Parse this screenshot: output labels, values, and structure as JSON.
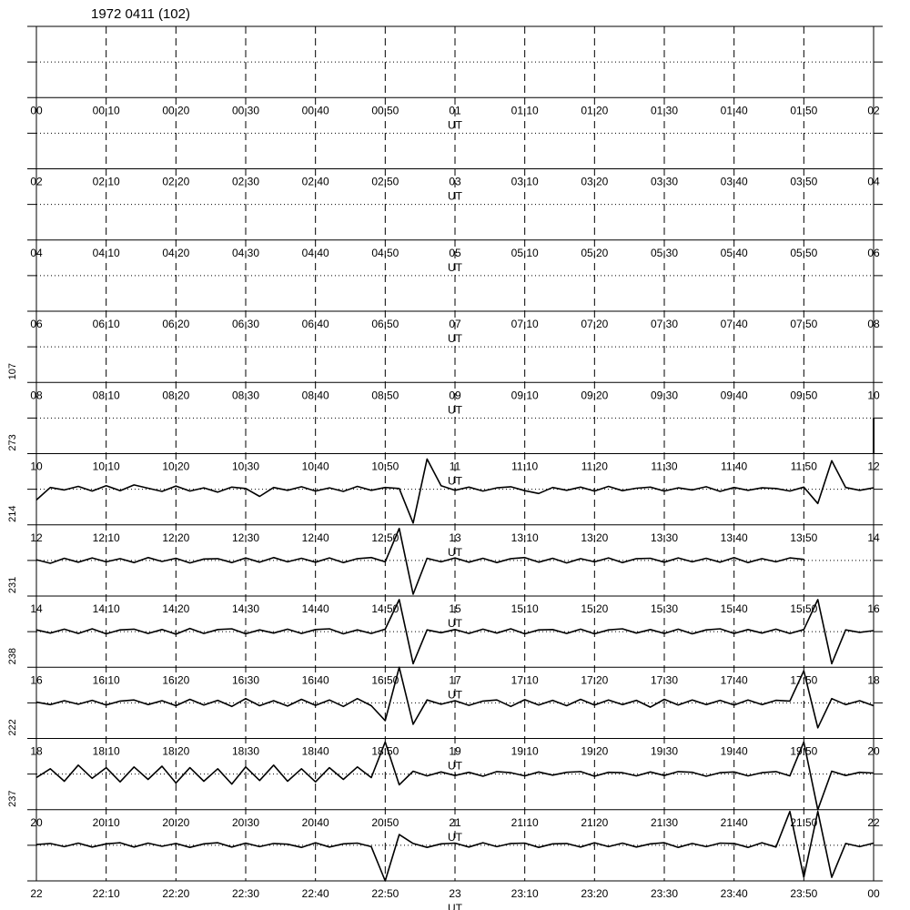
{
  "chart_data": {
    "type": "helicorder",
    "title": "1972 0411 (102)",
    "axis_label": "UT",
    "xlim": [
      0,
      120
    ],
    "ylim": [
      -1,
      1
    ],
    "x": [
      0,
      2,
      4,
      6,
      8,
      10,
      12,
      14,
      16,
      18,
      20,
      22,
      24,
      26,
      28,
      30,
      32,
      34,
      36,
      38,
      40,
      42,
      44,
      46,
      48,
      50,
      52,
      54,
      56,
      58,
      60,
      62,
      64,
      66,
      68,
      70,
      72,
      74,
      76,
      78,
      80,
      82,
      84,
      86,
      88,
      90,
      92,
      94,
      96,
      98,
      100,
      102,
      104,
      106,
      108,
      110,
      112,
      114,
      116,
      118,
      120
    ],
    "rows": [
      {
        "x_labels": [
          "00",
          "00:10",
          "00:20",
          "00:30",
          "00:40",
          "00:50",
          "01",
          "01:10",
          "01:20",
          "01:30",
          "01:40",
          "01:50",
          "02"
        ]
      },
      {
        "x_labels": [
          "02",
          "02:10",
          "02:20",
          "02:30",
          "02:40",
          "02:50",
          "03",
          "03:10",
          "03:20",
          "03:30",
          "03:40",
          "03:50",
          "04"
        ]
      },
      {
        "x_labels": [
          "04",
          "04:10",
          "04:20",
          "04:30",
          "04:40",
          "04:50",
          "05",
          "05:10",
          "05:20",
          "05:30",
          "05:40",
          "05:50",
          "06"
        ]
      },
      {
        "x_labels": [
          "06",
          "06:10",
          "06:20",
          "06:30",
          "06:40",
          "06:50",
          "07",
          "07:10",
          "07:20",
          "07:30",
          "07:40",
          "07:50",
          "08"
        ]
      },
      {
        "label": "107",
        "x_labels": [
          "08",
          "08:10",
          "08:20",
          "08:30",
          "08:40",
          "08:50",
          "09",
          "09:10",
          "09:20",
          "09:30",
          "09:40",
          "09:50",
          "10"
        ]
      },
      {
        "label": "273",
        "x_labels": [
          "10",
          "10:10",
          "10:20",
          "10:30",
          "10:40",
          "10:50",
          "11",
          "11:10",
          "11:20",
          "11:30",
          "11:40",
          "11:50",
          "12"
        ],
        "values": [
          null,
          null,
          null,
          null,
          null,
          null,
          null,
          null,
          null,
          null,
          null,
          null,
          null,
          null,
          null,
          null,
          null,
          null,
          null,
          null,
          null,
          null,
          null,
          null,
          null,
          null,
          null,
          null,
          null,
          null,
          null,
          null,
          null,
          null,
          null,
          null,
          null,
          null,
          null,
          null,
          null,
          null,
          null,
          null,
          null,
          null,
          null,
          null,
          null,
          null,
          null,
          null,
          null,
          null,
          null,
          null,
          null,
          null,
          null,
          null,
          -1
        ]
      },
      {
        "label": "214",
        "x_labels": [
          "12",
          "12:10",
          "12:20",
          "12:30",
          "12:40",
          "12:50",
          "13",
          "13:10",
          "13:20",
          "13:30",
          "13:40",
          "13:50",
          "14"
        ],
        "values": [
          -0.3,
          0.05,
          -0.02,
          0.08,
          -0.05,
          0.1,
          -0.04,
          0.12,
          0.03,
          -0.06,
          0.09,
          -0.05,
          0.04,
          -0.08,
          0.06,
          0.02,
          -0.2,
          0.05,
          -0.03,
          0.07,
          -0.05,
          0.04,
          -0.06,
          0.08,
          -0.03,
          0.05,
          0.02,
          -0.95,
          0.85,
          0.1,
          -0.03,
          0.06,
          -0.05,
          0.04,
          0.07,
          -0.04,
          -0.12,
          0.05,
          -0.03,
          0.06,
          -0.05,
          0.08,
          -0.04,
          0.03,
          0.06,
          -0.05,
          0.04,
          -0.02,
          0.07,
          -0.06,
          0.05,
          -0.03,
          0.04,
          0.02,
          -0.05,
          0.06,
          -0.4,
          0.8,
          0.05,
          -0.03,
          0.04
        ]
      },
      {
        "label": "231",
        "x_labels": [
          "14",
          "14:10",
          "14:20",
          "14:30",
          "14:40",
          "14:50",
          "15",
          "15:10",
          "15:20",
          "15:30",
          "15:40",
          "15:50",
          "16"
        ],
        "values": [
          0.02,
          -0.08,
          0.06,
          -0.05,
          0.07,
          -0.04,
          0.05,
          -0.06,
          0.08,
          -0.03,
          0.06,
          -0.07,
          0.04,
          0.05,
          -0.06,
          0.07,
          -0.05,
          0.08,
          -0.04,
          0.06,
          -0.05,
          0.07,
          -0.06,
          0.05,
          0.08,
          -0.04,
          0.9,
          -0.95,
          0.06,
          -0.04,
          0.07,
          -0.05,
          0.06,
          -0.06,
          0.05,
          0.08,
          -0.05,
          0.06,
          -0.07,
          0.05,
          -0.04,
          0.07,
          -0.06,
          0.05,
          0.06,
          -0.05,
          0.07,
          -0.04,
          0.06,
          -0.05,
          0.08,
          -0.06,
          0.05,
          -0.04,
          0.07,
          0.03,
          null,
          null,
          null,
          null,
          null
        ]
      },
      {
        "label": "238",
        "x_labels": [
          "16",
          "16:10",
          "16:20",
          "16:30",
          "16:40",
          "16:50",
          "17",
          "17:10",
          "17:20",
          "17:30",
          "17:40",
          "17:50",
          "18"
        ],
        "values": [
          0.05,
          -0.04,
          0.07,
          -0.05,
          0.08,
          -0.06,
          0.05,
          0.07,
          -0.05,
          0.06,
          -0.07,
          0.09,
          -0.05,
          0.06,
          0.08,
          -0.06,
          0.05,
          -0.04,
          0.07,
          -0.05,
          0.06,
          0.08,
          -0.06,
          0.05,
          -0.05,
          0.07,
          0.9,
          -0.9,
          0.05,
          -0.03,
          0.06,
          -0.05,
          0.07,
          -0.04,
          0.08,
          -0.06,
          0.05,
          0.06,
          -0.05,
          0.07,
          -0.06,
          0.05,
          0.08,
          -0.04,
          0.06,
          -0.05,
          0.07,
          -0.06,
          0.05,
          0.08,
          -0.05,
          0.06,
          -0.04,
          0.07,
          -0.05,
          0.06,
          0.9,
          -0.9,
          0.05,
          -0.02,
          0.03
        ]
      },
      {
        "label": "222",
        "x_labels": [
          "18",
          "18:10",
          "18:20",
          "18:30",
          "18:40",
          "18:50",
          "19",
          "19:10",
          "19:20",
          "19:30",
          "19:40",
          "19:50",
          "20"
        ],
        "values": [
          0.02,
          -0.05,
          0.06,
          -0.04,
          0.07,
          -0.06,
          0.05,
          0.08,
          -0.05,
          0.06,
          -0.08,
          0.1,
          -0.06,
          0.07,
          -0.1,
          0.12,
          -0.08,
          0.06,
          -0.09,
          0.1,
          -0.07,
          0.08,
          -0.1,
          0.12,
          -0.08,
          -0.5,
          1.0,
          -0.6,
          0.08,
          -0.04,
          0.06,
          -0.07,
          0.05,
          0.08,
          -0.1,
          0.09,
          -0.06,
          0.07,
          -0.08,
          0.1,
          -0.06,
          0.08,
          -0.05,
          0.07,
          -0.12,
          0.1,
          -0.06,
          0.08,
          -0.05,
          0.07,
          -0.06,
          0.08,
          -0.05,
          0.07,
          0.05,
          0.9,
          -0.7,
          0.12,
          -0.05,
          0.06,
          -0.08
        ]
      },
      {
        "label": "237",
        "x_labels": [
          "20",
          "20:10",
          "20:20",
          "20:30",
          "20:40",
          "20:50",
          "21",
          "21:10",
          "21:20",
          "21:30",
          "21:40",
          "21:50",
          "22"
        ],
        "values": [
          -0.1,
          0.15,
          -0.2,
          0.25,
          -0.12,
          0.18,
          -0.22,
          0.2,
          -0.15,
          0.22,
          -0.25,
          0.18,
          -0.2,
          0.15,
          -0.28,
          0.2,
          -0.18,
          0.25,
          -0.2,
          0.15,
          -0.22,
          0.18,
          -0.15,
          0.2,
          -0.1,
          0.9,
          -0.3,
          0.08,
          -0.05,
          0.06,
          -0.04,
          0.05,
          -0.06,
          0.07,
          0.04,
          -0.05,
          0.06,
          -0.03,
          0.05,
          0.07,
          -0.06,
          0.05,
          0.04,
          -0.05,
          0.06,
          -0.04,
          0.07,
          0.05,
          -0.06,
          0.04,
          0.06,
          -0.05,
          0.04,
          0.07,
          -0.05,
          0.9,
          -1.0,
          0.08,
          -0.04,
          0.05,
          0.03
        ]
      },
      {
        "x_labels": [
          "22",
          "22:10",
          "22:20",
          "22:30",
          "22:40",
          "22:50",
          "23",
          "23:10",
          "23:20",
          "23:30",
          "23:40",
          "23:50",
          "00"
        ],
        "values": [
          0.02,
          0.05,
          -0.04,
          0.06,
          -0.05,
          0.04,
          0.07,
          -0.05,
          0.06,
          -0.03,
          0.05,
          -0.06,
          0.04,
          0.07,
          -0.05,
          0.06,
          -0.04,
          0.05,
          0.03,
          -0.06,
          0.07,
          -0.05,
          0.04,
          0.06,
          -0.04,
          -1.0,
          0.3,
          0.05,
          -0.06,
          0.04,
          0.06,
          -0.05,
          0.07,
          -0.04,
          0.05,
          0.06,
          -0.06,
          0.04,
          0.05,
          -0.05,
          0.07,
          -0.04,
          0.06,
          -0.05,
          0.04,
          0.07,
          -0.06,
          0.05,
          -0.04,
          0.06,
          0.05,
          -0.06,
          0.07,
          -0.05,
          0.95,
          -0.9,
          0.95,
          -0.9,
          0.05,
          -0.04,
          0.06
        ]
      }
    ]
  }
}
